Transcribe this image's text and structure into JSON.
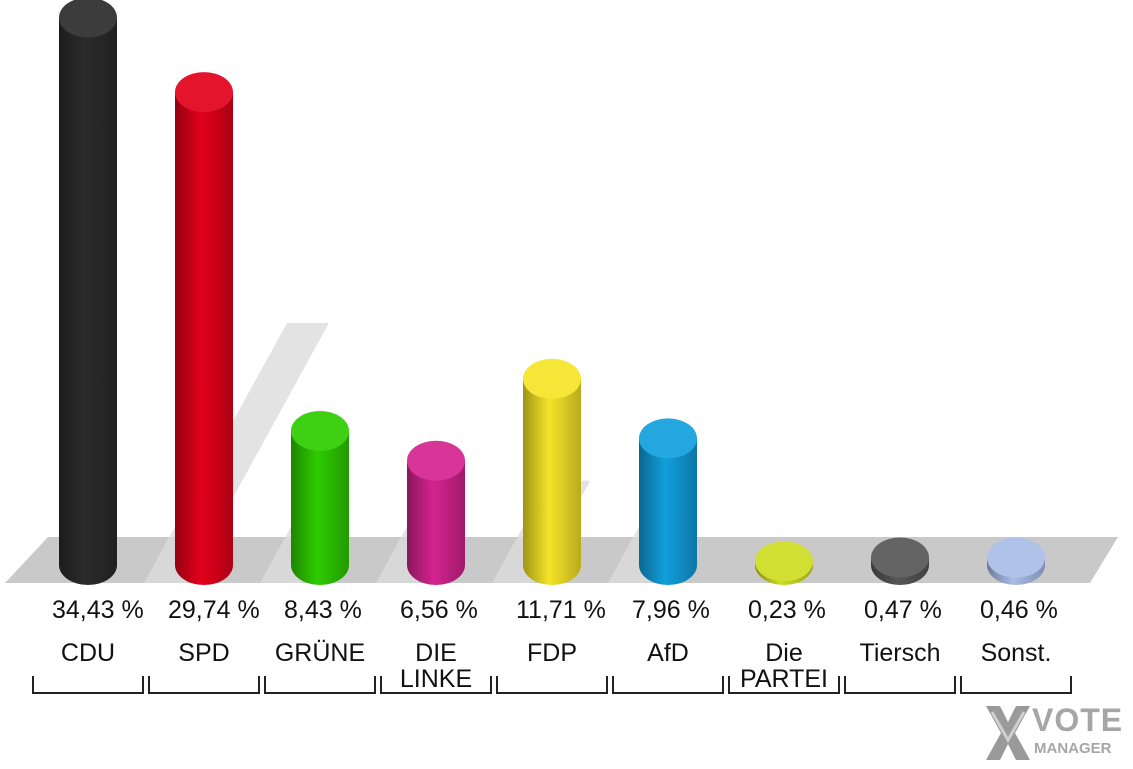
{
  "chart_data": {
    "type": "bar",
    "categories": [
      "CDU",
      "SPD",
      "GRÜNE",
      "DIE LINKE",
      "FDP",
      "AfD",
      "Die PARTEI",
      "Tiersch",
      "Sonst."
    ],
    "label_lines": [
      [
        "CDU"
      ],
      [
        "SPD"
      ],
      [
        "GRÜNE"
      ],
      [
        "DIE",
        "LINKE"
      ],
      [
        "FDP"
      ],
      [
        "AfD"
      ],
      [
        "Die",
        "PARTEI"
      ],
      [
        "Tiersch"
      ],
      [
        "Sonst."
      ]
    ],
    "values": [
      34.43,
      29.74,
      8.43,
      6.56,
      11.71,
      7.96,
      0.23,
      0.47,
      0.46
    ],
    "value_labels": [
      "34,43 %",
      "29,74 %",
      "8,43 %",
      "6,56 %",
      "11,71 %",
      "7,96 %",
      "0,23 %",
      "0,47 %",
      "0,46 %"
    ],
    "colors": [
      "#2b2b2b",
      "#e3001b",
      "#2ecc00",
      "#d4238f",
      "#f5e427",
      "#119fdc",
      "#cddc20",
      "#565656",
      "#a9bde8"
    ],
    "shadow_values": [
      29.74,
      8.43,
      6.56,
      11.71,
      7.96
    ],
    "grid": false,
    "legend": "none"
  },
  "logo": {
    "text_main": "VOTE",
    "text_sub": "MANAGER"
  }
}
